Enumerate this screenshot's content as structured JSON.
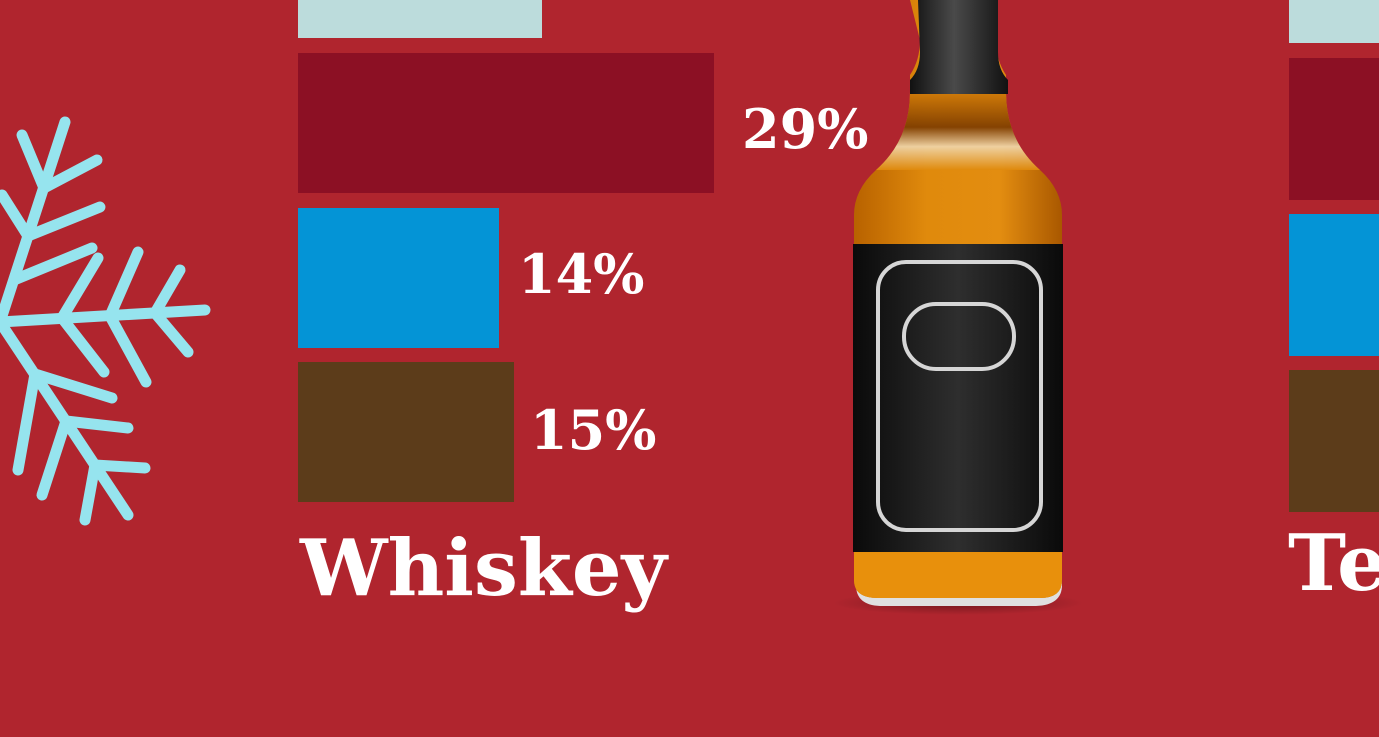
{
  "chart_data": [
    {
      "type": "bar",
      "orientation": "horizontal",
      "title": "Whiskey",
      "categories": [
        "",
        "",
        "",
        ""
      ],
      "values": [
        null,
        29,
        14,
        15
      ],
      "value_labels": [
        "",
        "29%",
        "14%",
        "15%"
      ],
      "colors": [
        "#bcdcdc",
        "#8c1024",
        "#0494d6",
        "#5c3c1a"
      ],
      "unit": "%"
    },
    {
      "type": "bar",
      "orientation": "horizontal",
      "title": "Te",
      "categories": [
        "",
        "",
        "",
        ""
      ],
      "values": [
        null,
        null,
        null,
        null
      ],
      "colors": [
        "#bcdcdc",
        "#8c1024",
        "#0494d6",
        "#5c3c1a"
      ]
    }
  ],
  "icons": {
    "snowflake": "snowflake-icon",
    "bottle": "whiskey-bottle-icon"
  },
  "colors": {
    "background": "#b0252e",
    "snowflake": "#96e4ee",
    "text": "#ffffff"
  }
}
